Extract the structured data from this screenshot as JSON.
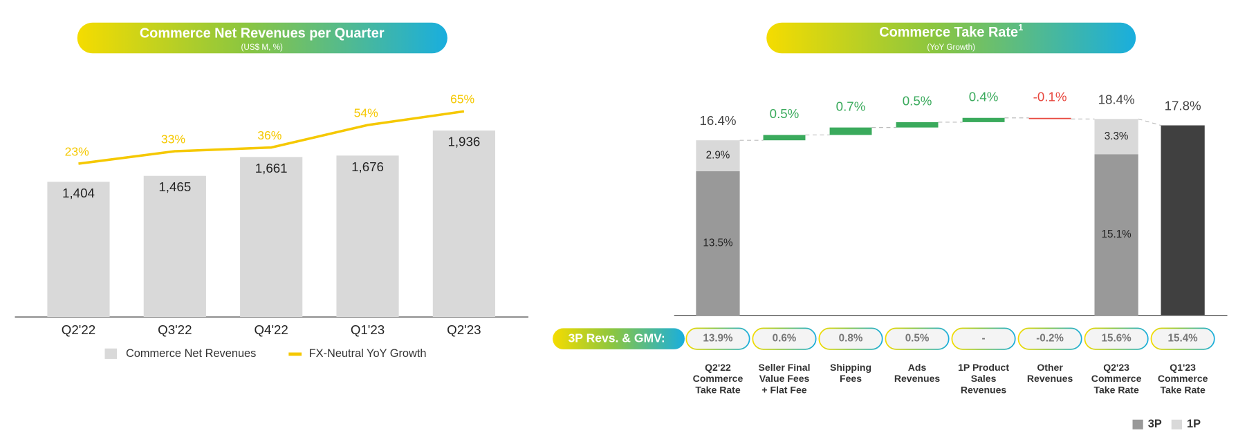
{
  "chart_data": [
    {
      "type": "combo",
      "title": "Commerce Net Revenues per Quarter",
      "subtitle": "(US$ M, %)",
      "categories": [
        "Q2'22",
        "Q3'22",
        "Q4'22",
        "Q1'23",
        "Q2'23"
      ],
      "series": [
        {
          "name": "Commerce Net Revenues",
          "type": "bar",
          "color": "#d9d9d9",
          "values": [
            1404,
            1465,
            1661,
            1676,
            1936
          ],
          "value_labels": [
            "1,404",
            "1,465",
            "1,661",
            "1,676",
            "1,936"
          ]
        },
        {
          "name": "FX-Neutral YoY Growth",
          "type": "line",
          "axis": "y2",
          "color": "#f5c800",
          "values": [
            23,
            33,
            36,
            54,
            65
          ],
          "value_labels": [
            "23%",
            "33%",
            "36%",
            "54%",
            "65%"
          ]
        }
      ],
      "ylim": [
        0,
        2200
      ],
      "y2lim": [
        -100,
        70
      ]
    },
    {
      "type": "waterfall",
      "title": "Commerce Take Rate",
      "title_note": "1",
      "subtitle": "(YoY Growth)",
      "categories": [
        [
          "Q2'22",
          "Commerce",
          "Take Rate"
        ],
        [
          "Seller Final",
          "Value Fees",
          "+ Flat Fee"
        ],
        [
          "Shipping",
          "Fees"
        ],
        [
          "Ads",
          "Revenues"
        ],
        [
          "1P Product",
          "Sales",
          "Revenues"
        ],
        [
          "Other",
          "Revenues"
        ],
        [
          "Q2'23",
          "Commerce",
          "Take Rate"
        ],
        [
          "Q1'23",
          "Commerce",
          "Take Rate"
        ]
      ],
      "series": [
        {
          "name": "3P",
          "color": "#999999",
          "values": [
            13.5,
            null,
            null,
            null,
            null,
            null,
            15.1,
            null
          ],
          "value_labels": [
            "13.5%",
            null,
            null,
            null,
            null,
            null,
            "15.1%",
            null
          ]
        },
        {
          "name": "1P",
          "color": "#d9d9d9",
          "values": [
            2.9,
            null,
            null,
            null,
            null,
            null,
            3.3,
            null
          ],
          "value_labels": [
            "2.9%",
            null,
            null,
            null,
            null,
            null,
            "3.3%",
            null
          ]
        }
      ],
      "totals": {
        "color": "#404040",
        "values": [
          16.4,
          null,
          null,
          null,
          null,
          null,
          18.4,
          17.8
        ],
        "value_labels": [
          "16.4%",
          null,
          null,
          null,
          null,
          null,
          "18.4%",
          "17.8%"
        ]
      },
      "changes": {
        "up_color": "#3aaa5c",
        "down_color": "#e8483f",
        "values": [
          null,
          0.5,
          0.7,
          0.5,
          0.4,
          -0.1,
          null,
          null
        ],
        "value_labels": [
          null,
          "0.5%",
          "0.7%",
          "0.5%",
          "0.4%",
          "-0.1%",
          null,
          null
        ]
      },
      "ylim": [
        0,
        20
      ],
      "gmv": {
        "label": "3P Revs. & GMV:",
        "values": [
          "13.9%",
          "0.6%",
          "0.8%",
          "0.5%",
          "-",
          "-0.2%",
          "15.6%",
          "15.4%"
        ]
      }
    }
  ]
}
